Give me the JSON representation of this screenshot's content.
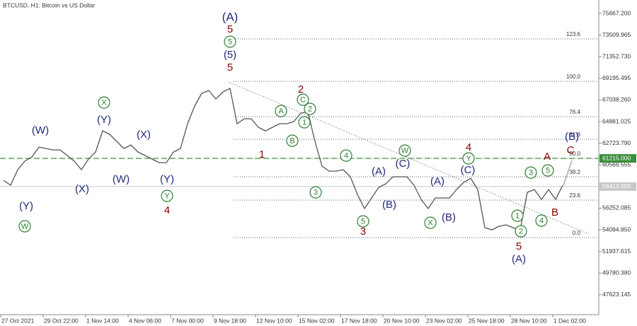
{
  "chart_data": {
    "type": "line",
    "title": "BTCUSD, H1:  Bitcoin vs US Dollar",
    "series": [
      {
        "name": "BTCUSD",
        "color": "#555555",
        "values": [
          59029,
          58535,
          60086,
          60932,
          61355,
          62342,
          62201,
          62060,
          62060,
          61496,
          60932,
          60086,
          61144,
          61849,
          63964,
          63611,
          62906,
          62201,
          62554,
          61849,
          61496,
          61144,
          60791,
          60791,
          61849,
          62201,
          64669,
          66431,
          67700,
          67982,
          67136,
          67841,
          68194,
          64669,
          65162,
          65162,
          64316,
          63964,
          64316,
          64669,
          64669,
          64880,
          65726,
          65867,
          62906,
          60439,
          59945,
          59945,
          60086,
          59381,
          57619,
          56209,
          57266,
          58324,
          58677,
          59381,
          59381,
          59381,
          58535,
          57125,
          56209,
          57266,
          57266,
          57266,
          58112,
          58817,
          59240,
          58112,
          54305,
          54094,
          54446,
          54587,
          54305,
          54094,
          57830,
          58112,
          57125,
          58112,
          57125,
          58535
        ]
      }
    ],
    "xlim": [
      -0.5,
      84.1
    ],
    "xticks": [
      {
        "value": -0.4,
        "label": "27 Oct 2021"
      },
      {
        "value": 5.6,
        "label": "29 Oct 22:00"
      },
      {
        "value": 11.6,
        "label": "1 Nov 14:00"
      },
      {
        "value": 17.6,
        "label": "4 Nov 06:00"
      },
      {
        "value": 23.6,
        "label": "7 Nov 00:00"
      },
      {
        "value": 29.6,
        "label": "9 Nov 18:00"
      },
      {
        "value": 35.6,
        "label": "12 Nov 10:00"
      },
      {
        "value": 41.6,
        "label": "15 Nov 02:00"
      },
      {
        "value": 47.6,
        "label": "17 Nov 18:00"
      },
      {
        "value": 53.6,
        "label": "20 Nov 10:00"
      },
      {
        "value": 59.6,
        "label": "23 Nov 02:00"
      },
      {
        "value": 65.6,
        "label": "25 Nov 18:00"
      },
      {
        "value": 71.6,
        "label": "28 Nov 10:00"
      },
      {
        "value": 77.6,
        "label": "1 Dec 02:00"
      }
    ],
    "ylim": [
      45635,
      77007
    ],
    "yticks": [
      {
        "value": 75667.2,
        "label": "75667.200"
      },
      {
        "value": 73509.965,
        "label": "73509.965"
      },
      {
        "value": 71352.73,
        "label": "71352.730"
      },
      {
        "value": 69195.495,
        "label": "69195.495"
      },
      {
        "value": 67038.26,
        "label": "67038.260"
      },
      {
        "value": 64881.025,
        "label": "64881.025"
      },
      {
        "value": 62723.79,
        "label": "62723.790"
      },
      {
        "value": 60566.555,
        "label": "60566.555"
      },
      {
        "value": 56252.085,
        "label": "56252.085"
      },
      {
        "value": 54094.85,
        "label": "54094.850"
      },
      {
        "value": 51937.615,
        "label": "51937.615"
      },
      {
        "value": 49780.38,
        "label": "49780.380"
      },
      {
        "value": 47623.145,
        "label": "47623.145"
      }
    ],
    "fib_levels": [
      {
        "value": 73129,
        "label": "123.6"
      },
      {
        "value": 68899,
        "label": "100.0"
      },
      {
        "value": 65374,
        "label": "76.4"
      },
      {
        "value": 63118,
        "label": "61.8"
      },
      {
        "value": 61214,
        "label": "50.0"
      },
      {
        "value": 59381,
        "label": "38.2"
      },
      {
        "value": 57055,
        "label": "23.6"
      },
      {
        "value": 53319,
        "label": "0.0"
      }
    ],
    "price_lines": [
      {
        "value": 61215,
        "label": "61215.000",
        "color": "#3c8f3c"
      },
      {
        "value": 58412,
        "label": "58412.000",
        "color": "#c8c8c8"
      }
    ],
    "wave_labels": [
      {
        "text": "(A)",
        "color": "#1f2a7a",
        "circled": false
      },
      {
        "text": "5",
        "color": "#8b0000",
        "circled": false
      },
      {
        "text": "5",
        "color": "#2e7d32",
        "circled": true
      },
      {
        "text": "(5)",
        "color": "#1f2a7a",
        "circled": false
      },
      {
        "text": "5",
        "color": "#8b0000",
        "circled": false
      },
      {
        "text": "(W)",
        "color": "#1f2a7a",
        "circled": false
      },
      {
        "text": "X",
        "color": "#2e7d32",
        "circled": true
      },
      {
        "text": "(Y)",
        "color": "#1f2a7a",
        "circled": false
      },
      {
        "text": "(X)",
        "color": "#1f2a7a",
        "circled": false
      },
      {
        "text": "(Y)",
        "color": "#1f2a7a",
        "circled": false
      },
      {
        "text": "W",
        "color": "#2e7d32",
        "circled": true
      },
      {
        "text": "(X)",
        "color": "#1f2a7a",
        "circled": false
      },
      {
        "text": "(W)",
        "color": "#1f2a7a",
        "circled": false
      },
      {
        "text": "(Y)",
        "color": "#1f2a7a",
        "circled": false
      },
      {
        "text": "Y",
        "color": "#2e7d32",
        "circled": true
      },
      {
        "text": "4",
        "color": "#8b0000",
        "circled": false
      },
      {
        "text": "1",
        "color": "#8b0000",
        "circled": false
      },
      {
        "text": "A",
        "color": "#2e7d32",
        "circled": true
      },
      {
        "text": "B",
        "color": "#2e7d32",
        "circled": true
      },
      {
        "text": "2",
        "color": "#8b0000",
        "circled": false
      },
      {
        "text": "C",
        "color": "#2e7d32",
        "circled": true
      },
      {
        "text": "2",
        "color": "#2e7d32",
        "circled": true
      },
      {
        "text": "1",
        "color": "#2e7d32",
        "circled": true
      },
      {
        "text": "3",
        "color": "#2e7d32",
        "circled": true
      },
      {
        "text": "4",
        "color": "#2e7d32",
        "circled": true
      },
      {
        "text": "5",
        "color": "#2e7d32",
        "circled": true
      },
      {
        "text": "3",
        "color": "#8b0000",
        "circled": false
      },
      {
        "text": "(A)",
        "color": "#1f2a7a",
        "circled": false
      },
      {
        "text": "(B)",
        "color": "#1f2a7a",
        "circled": false
      },
      {
        "text": "W",
        "color": "#2e7d32",
        "circled": true
      },
      {
        "text": "(C)",
        "color": "#1f2a7a",
        "circled": false
      },
      {
        "text": "4",
        "color": "#8b0000",
        "circled": false
      },
      {
        "text": "Y",
        "color": "#2e7d32",
        "circled": true
      },
      {
        "text": "(C)",
        "color": "#1f2a7a",
        "circled": false
      },
      {
        "text": "(A)",
        "color": "#1f2a7a",
        "circled": false
      },
      {
        "text": "X",
        "color": "#2e7d32",
        "circled": true
      },
      {
        "text": "(B)",
        "color": "#1f2a7a",
        "circled": false
      },
      {
        "text": "1",
        "color": "#2e7d32",
        "circled": true
      },
      {
        "text": "2",
        "color": "#2e7d32",
        "circled": true
      },
      {
        "text": "5",
        "color": "#8b0000",
        "circled": false
      },
      {
        "text": "(A)",
        "color": "#1f2a7a",
        "circled": false
      },
      {
        "text": "3",
        "color": "#2e7d32",
        "circled": true
      },
      {
        "text": "5",
        "color": "#2e7d32",
        "circled": true
      },
      {
        "text": "A",
        "color": "#8b0000",
        "circled": false
      },
      {
        "text": "4",
        "color": "#2e7d32",
        "circled": true
      },
      {
        "text": "B",
        "color": "#8b0000",
        "circled": false
      },
      {
        "text": "(B)",
        "color": "#1f2a7a",
        "circled": false
      },
      {
        "text": "C",
        "color": "#8b0000",
        "circled": false
      }
    ]
  }
}
